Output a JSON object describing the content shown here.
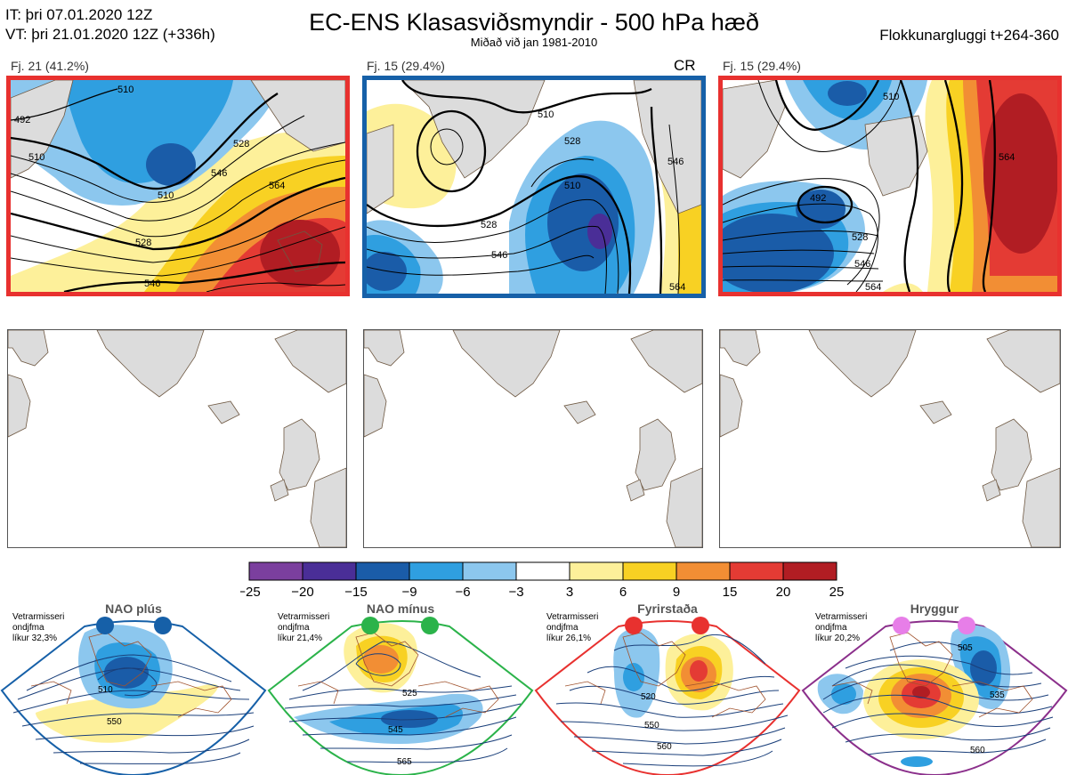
{
  "header": {
    "it_line": "IT: þri 07.01.2020 12Z",
    "vt_line": "VT: þri 21.01.2020 12Z  (+336h)",
    "title": "EC-ENS Klasasviðsmyndir - 500 hPa hæð",
    "subtitle": "Miðað við jan 1981-2010",
    "window": "Flokkunargluggi t+264-360"
  },
  "clusters": [
    {
      "label": "Fj. 21 (41.2%)",
      "tag": "",
      "border_color": "#e8312f"
    },
    {
      "label": "Fj. 15 (29.4%)",
      "tag": "CR",
      "border_color": "#1660a8"
    },
    {
      "label": "Fj. 15 (29.4%)",
      "tag": "",
      "border_color": "#e8312f"
    }
  ],
  "contour_labels": {
    "cluster1": [
      "492",
      "510",
      "510",
      "528",
      "528",
      "546",
      "564",
      "546",
      "510"
    ],
    "cluster2": [
      "510",
      "510",
      "528",
      "528",
      "546",
      "546",
      "564"
    ],
    "cluster3": [
      "492",
      "510",
      "528",
      "546",
      "564",
      "564"
    ]
  },
  "colors": {
    "neg25_20": "#7b3f9e",
    "neg20_15": "#4a2e97",
    "neg15_9": "#1a5ca8",
    "neg9_6": "#2f9fe0",
    "neg6_3": "#8cc7ee",
    "neutral": "#ffffff",
    "pos3_6": "#fdf09a",
    "pos6_9": "#f8d123",
    "pos9_15": "#f28e34",
    "pos15_20": "#e43b34",
    "pos20_25": "#b11d23",
    "land": "#dcdcdc",
    "coast": "#6e5842",
    "red_frame": "#e8312f",
    "blue_frame": "#1660a8"
  },
  "chart_data": {
    "type": "heatmap",
    "title": "EC-ENS Klasasviðsmyndir - 500 hPa hæð",
    "legend_ticks": [
      "−25",
      "−20",
      "−15",
      "−9",
      "−6",
      "−3",
      "3",
      "6",
      "9",
      "15",
      "20",
      "25"
    ],
    "legend_values": [
      -25,
      -20,
      -15,
      -9,
      -6,
      -3,
      3,
      6,
      9,
      15,
      20,
      25
    ],
    "legend_colors": [
      "#7b3f9e",
      "#4a2e97",
      "#1a5ca8",
      "#2f9fe0",
      "#8cc7ee",
      "#ffffff",
      "#fdf09a",
      "#f8d123",
      "#f28e34",
      "#e43b34",
      "#b11d23"
    ]
  },
  "regimes": [
    {
      "name": "NAO plús",
      "text1": "Vetrarmisseri",
      "text2": "ondjfma",
      "text3": "líkur 32,3%",
      "dot_color": "#1660a8",
      "border_color": "#1660a8",
      "labels": [
        "510",
        "550"
      ]
    },
    {
      "name": "NAO mínus",
      "text1": "Vetrarmisseri",
      "text2": "ondjfma",
      "text3": "líkur 21,4%",
      "dot_color": "#2bb34a",
      "border_color": "#2bb34a",
      "labels": [
        "525",
        "545",
        "565"
      ]
    },
    {
      "name": "Fyrirstaða",
      "text1": "Vetrarmisseri",
      "text2": "ondjfma",
      "text3": "líkur 26,1%",
      "dot_color": "#e8312f",
      "border_color": "#e8312f",
      "labels": [
        "520",
        "550",
        "560"
      ]
    },
    {
      "name": "Hryggur",
      "text1": "Vetrarmisseri",
      "text2": "ondjfma",
      "text3": "líkur 20,2%",
      "dot_color": "#e77ee8",
      "border_color": "#8b2f8b",
      "labels": [
        "505",
        "535",
        "560"
      ]
    }
  ]
}
